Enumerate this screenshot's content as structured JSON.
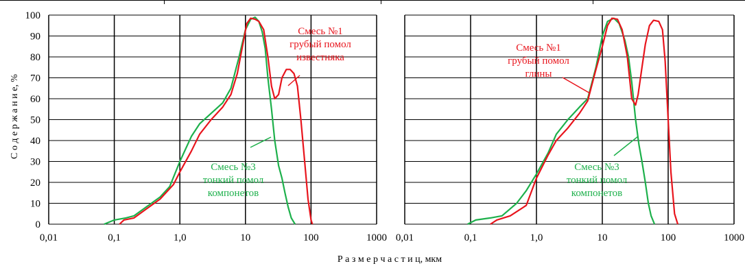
{
  "figure": {
    "ylabel": "С о д е р ж а н и е,   %",
    "xlabel": "Р а з м е р  ч а с т и ц,   мкм"
  },
  "colors": {
    "red": "#e8141c",
    "green": "#1db04b",
    "grid": "#000000"
  },
  "chart_data": [
    {
      "type": "line",
      "xscale": "log",
      "xlim": [
        0.01,
        1000
      ],
      "ylim": [
        0,
        100
      ],
      "grid": true,
      "x_ticks": [
        "0,01",
        "0,1",
        "1,0",
        "10",
        "100",
        "1000"
      ],
      "y_ticks": [
        "0",
        "10",
        "20",
        "30",
        "40",
        "50",
        "60",
        "70",
        "80",
        "90",
        "100"
      ],
      "series": [
        {
          "color": "red",
          "points": [
            [
              0.12,
              0
            ],
            [
              0.14,
              2
            ],
            [
              0.2,
              3
            ],
            [
              0.3,
              7
            ],
            [
              0.5,
              12
            ],
            [
              0.8,
              19
            ],
            [
              1.0,
              25
            ],
            [
              1.5,
              35
            ],
            [
              2.0,
              43
            ],
            [
              3.0,
              50
            ],
            [
              4.5,
              56
            ],
            [
              6.0,
              62
            ],
            [
              7.5,
              72
            ],
            [
              9.0,
              85
            ],
            [
              10.5,
              96
            ],
            [
              12,
              98.5
            ],
            [
              14,
              98
            ],
            [
              16,
              97
            ],
            [
              19,
              93
            ],
            [
              22,
              80
            ],
            [
              25,
              66
            ],
            [
              28,
              60
            ],
            [
              32,
              62
            ],
            [
              36,
              70
            ],
            [
              42,
              74
            ],
            [
              48,
              74
            ],
            [
              55,
              72
            ],
            [
              62,
              66
            ],
            [
              70,
              50
            ],
            [
              80,
              30
            ],
            [
              90,
              12
            ],
            [
              100,
              2
            ],
            [
              105,
              0
            ]
          ]
        },
        {
          "color": "green",
          "points": [
            [
              0.07,
              0
            ],
            [
              0.1,
              2
            ],
            [
              0.15,
              3
            ],
            [
              0.2,
              4
            ],
            [
              0.3,
              8
            ],
            [
              0.5,
              13
            ],
            [
              0.7,
              18
            ],
            [
              1.0,
              30
            ],
            [
              1.5,
              42
            ],
            [
              2.0,
              48
            ],
            [
              3.0,
              53
            ],
            [
              4.5,
              58
            ],
            [
              6.0,
              65
            ],
            [
              8.0,
              80
            ],
            [
              10,
              93
            ],
            [
              12,
              98
            ],
            [
              14,
              99
            ],
            [
              16,
              97
            ],
            [
              18,
              92
            ],
            [
              20,
              84
            ],
            [
              22,
              70
            ],
            [
              25,
              55
            ],
            [
              28,
              40
            ],
            [
              32,
              28
            ],
            [
              36,
              22
            ],
            [
              40,
              15
            ],
            [
              45,
              8
            ],
            [
              50,
              3
            ],
            [
              57,
              0
            ]
          ]
        }
      ],
      "annotations": [
        {
          "lines": [
            "Смесь №1",
            "грубый помол",
            "известняка"
          ],
          "color": "red"
        },
        {
          "lines": [
            "Смесь №3",
            "тонкий помол",
            "компонетов"
          ],
          "color": "green"
        }
      ]
    },
    {
      "type": "line",
      "xscale": "log",
      "xlim": [
        0.01,
        1000
      ],
      "ylim": [
        0,
        100
      ],
      "grid": true,
      "x_ticks": [
        "0,01",
        "0,1",
        "1,0",
        "10",
        "100",
        "1000"
      ],
      "y_ticks": [],
      "series": [
        {
          "color": "red",
          "points": [
            [
              0.2,
              0
            ],
            [
              0.25,
              2
            ],
            [
              0.4,
              4
            ],
            [
              0.7,
              9
            ],
            [
              1.0,
              22
            ],
            [
              1.5,
              33
            ],
            [
              2.0,
              40
            ],
            [
              3.0,
              46
            ],
            [
              4.5,
              53
            ],
            [
              6.0,
              59
            ],
            [
              8.0,
              74
            ],
            [
              10,
              85
            ],
            [
              12,
              95
            ],
            [
              14,
              98.5
            ],
            [
              17,
              98
            ],
            [
              20,
              93
            ],
            [
              24,
              80
            ],
            [
              28,
              60
            ],
            [
              32,
              57
            ],
            [
              35,
              62
            ],
            [
              40,
              75
            ],
            [
              45,
              86
            ],
            [
              52,
              95
            ],
            [
              60,
              97.5
            ],
            [
              72,
              97
            ],
            [
              82,
              93
            ],
            [
              90,
              78
            ],
            [
              100,
              50
            ],
            [
              110,
              25
            ],
            [
              125,
              5
            ],
            [
              140,
              0
            ]
          ]
        },
        {
          "color": "green",
          "points": [
            [
              0.09,
              0
            ],
            [
              0.12,
              2
            ],
            [
              0.2,
              3
            ],
            [
              0.3,
              4
            ],
            [
              0.5,
              10
            ],
            [
              0.7,
              16
            ],
            [
              1.0,
              24
            ],
            [
              1.5,
              34
            ],
            [
              2.0,
              43
            ],
            [
              3.0,
              50
            ],
            [
              4.5,
              56
            ],
            [
              6.0,
              60
            ],
            [
              8.0,
              75
            ],
            [
              10,
              90
            ],
            [
              12,
              97
            ],
            [
              15,
              98.5
            ],
            [
              18,
              96
            ],
            [
              22,
              88
            ],
            [
              25,
              80
            ],
            [
              28,
              68
            ],
            [
              32,
              50
            ],
            [
              36,
              38
            ],
            [
              40,
              30
            ],
            [
              45,
              20
            ],
            [
              50,
              10
            ],
            [
              55,
              4
            ],
            [
              62,
              0
            ]
          ]
        }
      ],
      "annotations": [
        {
          "lines": [
            "Смесь №1",
            "грубый помол",
            "глины"
          ],
          "color": "red"
        },
        {
          "lines": [
            "Смесь №3",
            "тонкий помол",
            "компонетов"
          ],
          "color": "green"
        }
      ]
    }
  ]
}
